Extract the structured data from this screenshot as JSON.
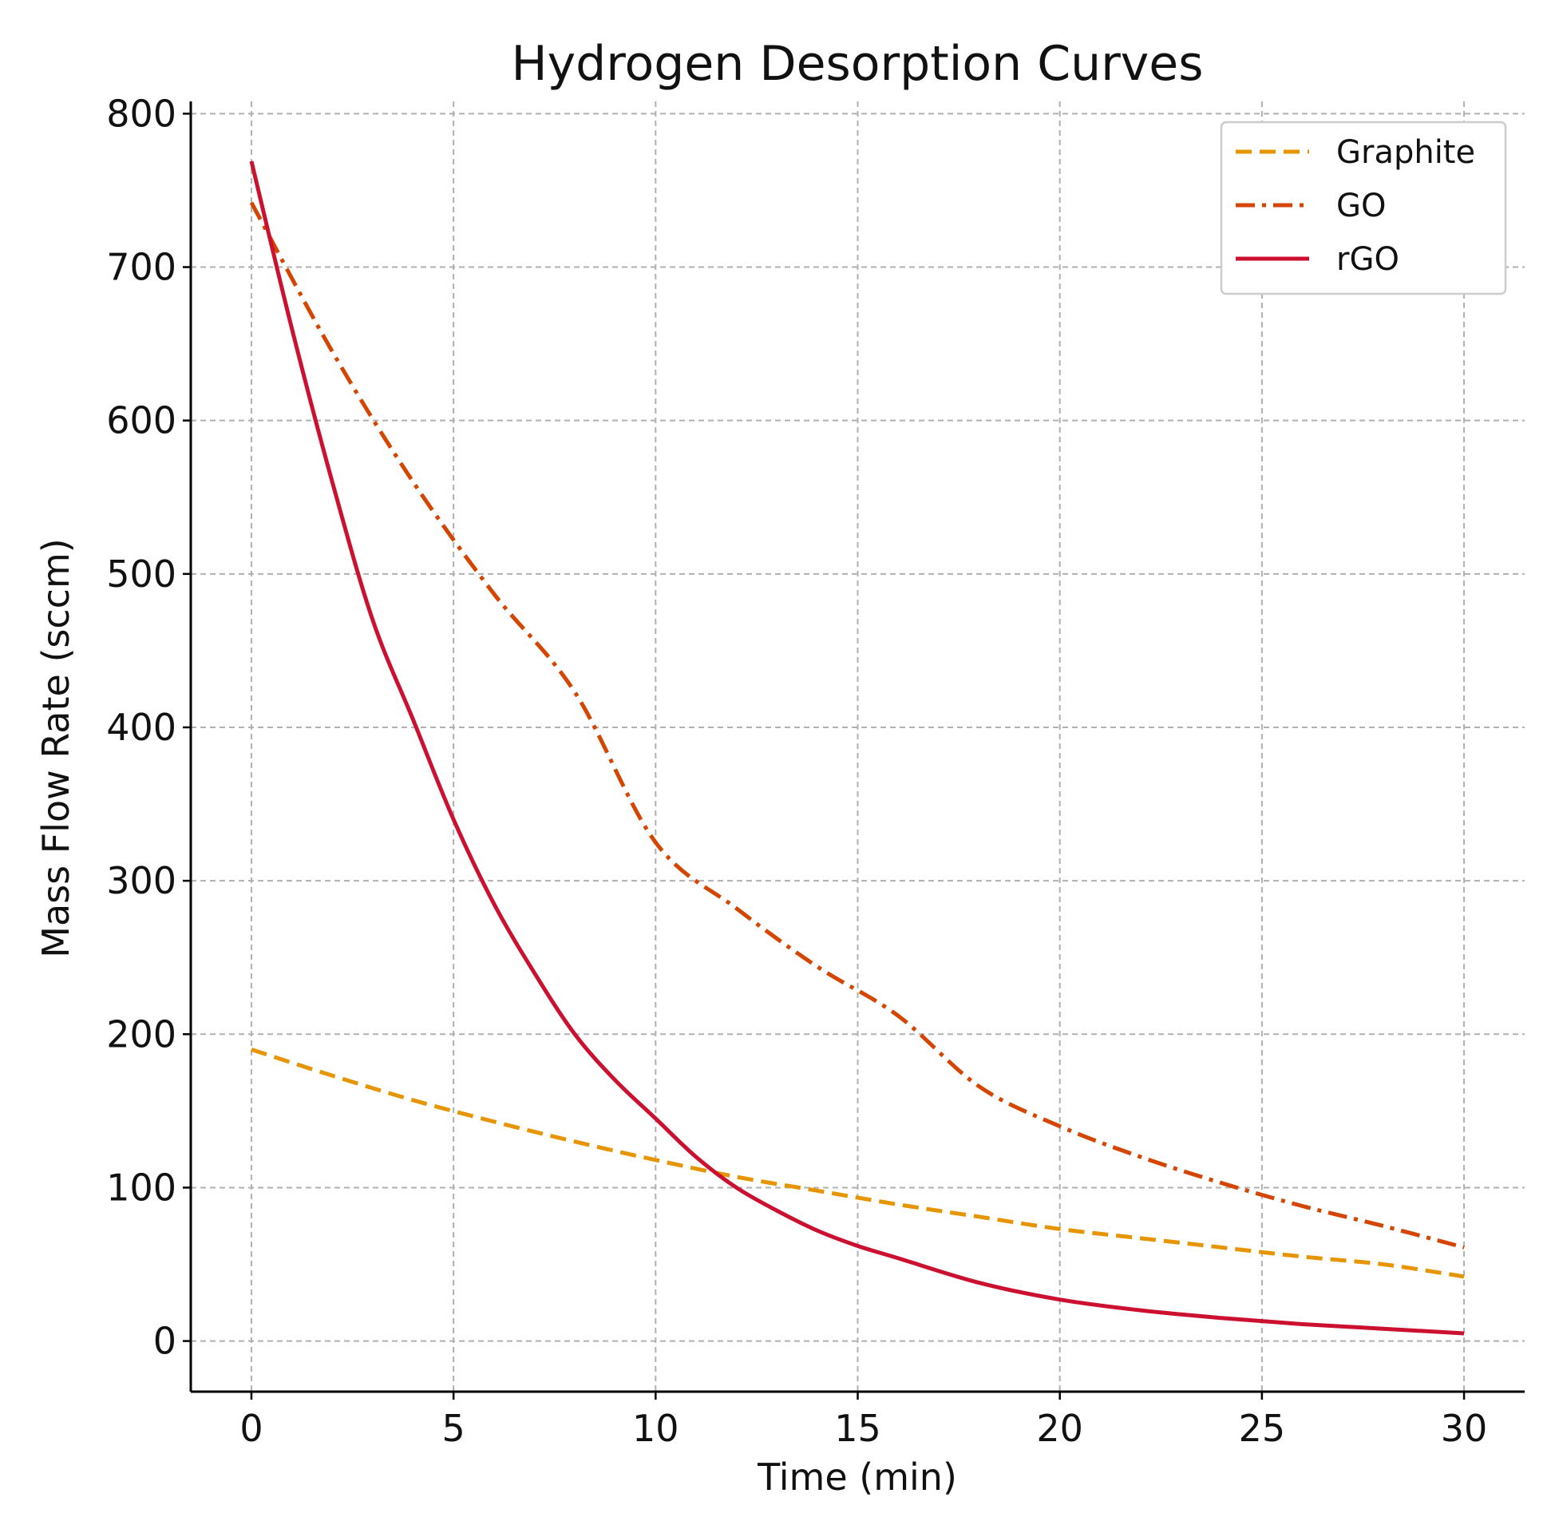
{
  "chart_data": {
    "type": "line",
    "title": "Hydrogen Desorption Curves",
    "xlabel": "Time (min)",
    "ylabel": "Mass Flow Rate (sccm)",
    "xlim": [
      -1.5,
      31.5
    ],
    "ylim": [
      -33,
      808
    ],
    "xticks": [
      0,
      5,
      10,
      15,
      20,
      25,
      30
    ],
    "yticks": [
      0,
      100,
      200,
      300,
      400,
      500,
      600,
      700,
      800
    ],
    "grid": true,
    "legend_position": "top-right",
    "series": [
      {
        "name": "Graphite",
        "color": "#e69500",
        "line_style": "dashed",
        "x": [
          0,
          2,
          4,
          6,
          8,
          10,
          12,
          14,
          16,
          18,
          20,
          22,
          24,
          26,
          28,
          30
        ],
        "values": [
          190,
          173,
          157,
          143,
          130,
          118,
          107,
          98,
          89,
          81,
          73,
          67,
          61,
          55,
          50,
          42
        ]
      },
      {
        "name": "GO",
        "color": "#d44500",
        "line_style": "dash-dot",
        "x": [
          0,
          2,
          4,
          6,
          8,
          10,
          12,
          14,
          16,
          18,
          20,
          22,
          24,
          26,
          28,
          30
        ],
        "values": [
          742,
          645,
          560,
          487,
          423,
          325,
          282,
          244,
          212,
          166,
          140,
          120,
          103,
          88,
          75,
          61
        ]
      },
      {
        "name": "rGO",
        "color": "#cc1030",
        "line_style": "solid",
        "x": [
          0,
          1,
          2,
          3,
          4,
          5,
          6,
          7,
          8,
          9,
          10,
          11,
          12,
          13,
          14,
          15,
          16,
          18,
          20,
          22,
          24,
          26,
          28,
          30
        ],
        "values": [
          769,
          660,
          560,
          470,
          405,
          340,
          285,
          240,
          200,
          170,
          145,
          120,
          100,
          85,
          72,
          62,
          54,
          38,
          27,
          20,
          15,
          11,
          8,
          5
        ]
      }
    ]
  }
}
